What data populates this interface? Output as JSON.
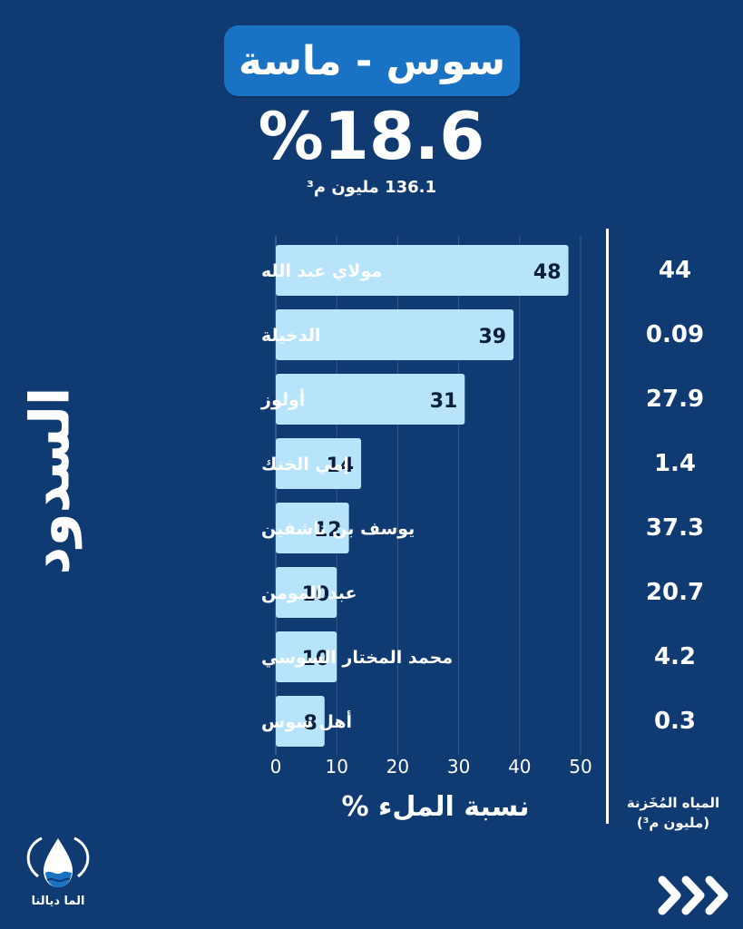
{
  "header": {
    "title": "سوس - ماسة",
    "fill_percent": "%18.6",
    "stored_total": "136.1 مليون م³"
  },
  "y_axis_title": "السدود",
  "stored_column": {
    "header_line1": "المياه المُخَزنة",
    "header_line2": "(مليون م³)",
    "values": [
      "44",
      "0.09",
      "27.9",
      "1.4",
      "37.3",
      "20.7",
      "4.2",
      "0.3"
    ]
  },
  "brand": {
    "logo_text": "الما ديالنا"
  },
  "colors": {
    "background": "#0f3a72",
    "pill": "#1a72c4",
    "bar": "#b7e4fb",
    "bar_text": "#0b1f3a"
  },
  "chart_data": {
    "type": "bar",
    "orientation": "horizontal",
    "categories": [
      "مولاي عبد الله",
      "الدخيلة",
      "أولوز",
      "إمي الخنك",
      "يوسف بن تاشفين",
      "عبد المومن",
      "محمد المختار السوسي",
      "أهل سوس"
    ],
    "values": [
      48,
      39,
      31,
      14,
      12,
      10,
      10,
      8
    ],
    "xlabel": "نسبة الملء %",
    "ylabel": "السدود",
    "xlim": [
      0,
      50
    ],
    "xticks": [
      0,
      10,
      20,
      30,
      40,
      50
    ],
    "grid": true
  }
}
